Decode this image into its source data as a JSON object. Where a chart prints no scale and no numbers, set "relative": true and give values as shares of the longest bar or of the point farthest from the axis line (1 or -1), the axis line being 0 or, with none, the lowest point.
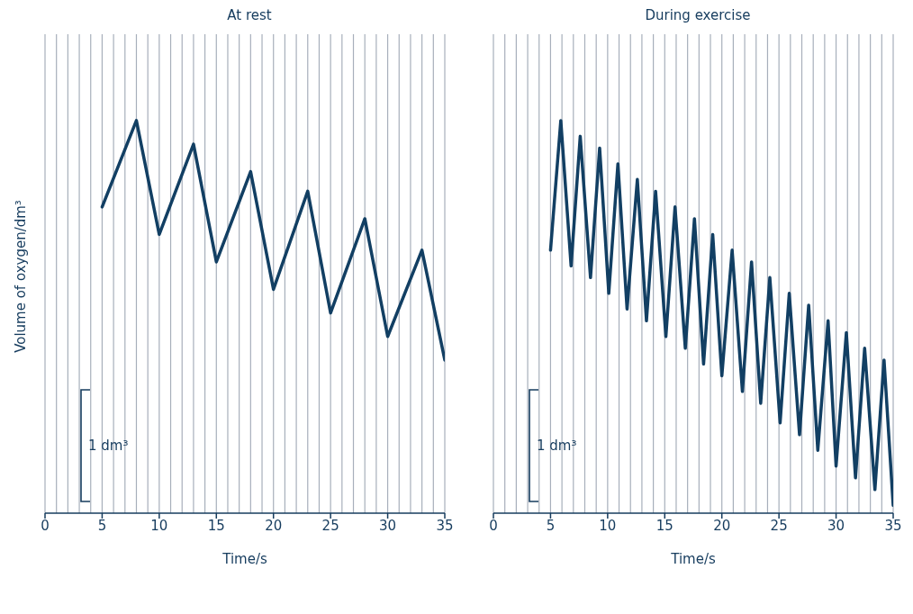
{
  "chart_data": [
    {
      "type": "line",
      "title": "At rest",
      "xlabel": "Time/s",
      "ylabel": "Volume of oxygen/dm³",
      "relative": true,
      "xlim": [
        0,
        35
      ],
      "xticks": [
        0,
        5,
        10,
        15,
        20,
        25,
        30,
        35
      ],
      "grid": true,
      "tick_labels": "x",
      "marker": "none",
      "line_style": "solid",
      "annotations": [
        "1 dm³"
      ],
      "series": [
        {
          "color": "#123f63",
          "x": [
            5,
            8,
            10,
            13,
            15,
            18,
            20,
            23,
            25,
            28,
            30,
            33,
            35
          ],
          "values": [
            0.78,
            1,
            0.71,
            0.94,
            0.64,
            0.87,
            0.57,
            0.82,
            0.51,
            0.75,
            0.45,
            0.67,
            0.39
          ]
        }
      ]
    },
    {
      "type": "line",
      "title": "During exercise",
      "xlabel": "Time/s",
      "relative": true,
      "xlim": [
        0,
        35
      ],
      "xticks": [
        0,
        5,
        10,
        15,
        20,
        25,
        30,
        35
      ],
      "grid": true,
      "tick_labels": "x",
      "marker": "none",
      "line_style": "solid",
      "annotations": [
        "1 dm³"
      ],
      "series": [
        {
          "color": "#123f63",
          "x": [
            5,
            5.9,
            6.8,
            7.6,
            8.5,
            9.3,
            10.1,
            10.9,
            11.7,
            12.6,
            13.4,
            14.2,
            15.1,
            15.9,
            16.8,
            17.6,
            18.4,
            19.2,
            20,
            20.9,
            21.8,
            22.6,
            23.4,
            24.2,
            25.1,
            25.9,
            26.8,
            27.6,
            28.4,
            29.3,
            30,
            30.9,
            31.7,
            32.5,
            33.4,
            34.2,
            35
          ],
          "values": [
            0.67,
            1,
            0.63,
            0.96,
            0.6,
            0.93,
            0.56,
            0.89,
            0.52,
            0.85,
            0.49,
            0.82,
            0.45,
            0.78,
            0.42,
            0.75,
            0.38,
            0.71,
            0.35,
            0.67,
            0.31,
            0.64,
            0.28,
            0.6,
            0.23,
            0.56,
            0.2,
            0.53,
            0.16,
            0.49,
            0.12,
            0.46,
            0.09,
            0.42,
            0.06,
            0.39,
            0.02
          ]
        }
      ]
    }
  ]
}
